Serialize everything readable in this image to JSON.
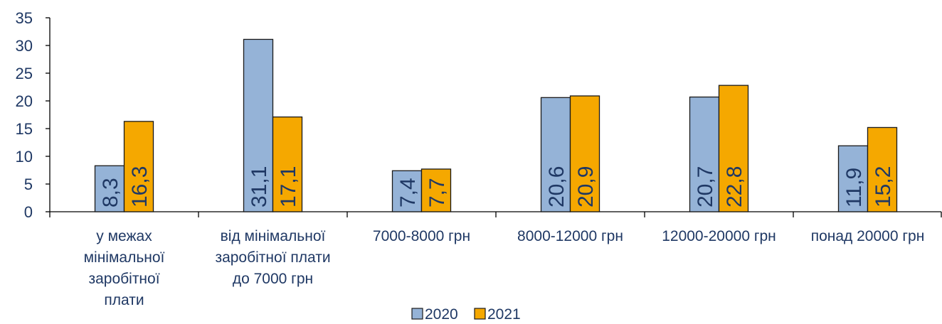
{
  "chart_data": {
    "type": "bar",
    "title": "",
    "xlabel": "",
    "ylabel": "",
    "ylim": [
      0,
      35
    ],
    "yticks": [
      0,
      5,
      10,
      15,
      20,
      25,
      30,
      35
    ],
    "grid": false,
    "legend_position": "bottom",
    "categories": [
      [
        "у межах",
        "мінімальної",
        "заробітної",
        "плати"
      ],
      [
        "від мінімальної",
        "заробітної плати",
        "до 7000 грн"
      ],
      [
        "7000-8000 грн"
      ],
      [
        "8000-12000 грн"
      ],
      [
        "12000-20000 грн"
      ],
      [
        "понад 20000 грн"
      ]
    ],
    "series": [
      {
        "name": "2020",
        "color": "#95b3d7",
        "values": [
          8.3,
          31.1,
          7.4,
          20.6,
          20.7,
          11.9
        ],
        "labels": [
          "8,3",
          "31,1",
          "7,4",
          "20,6",
          "20,7",
          "11,9"
        ]
      },
      {
        "name": "2021",
        "color": "#f5a800",
        "values": [
          16.3,
          17.1,
          7.7,
          20.9,
          22.8,
          15.2
        ],
        "labels": [
          "16,3",
          "17,1",
          "7,7",
          "20,9",
          "22,8",
          "15,2"
        ]
      }
    ]
  }
}
